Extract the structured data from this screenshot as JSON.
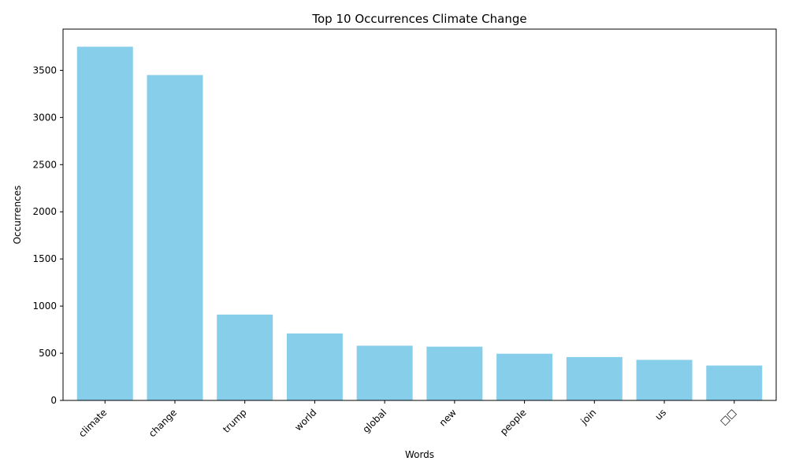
{
  "chart_data": {
    "type": "bar",
    "title": "Top 10 Occurrences Climate Change",
    "xlabel": "Words",
    "ylabel": "Occurrences",
    "categories": [
      "climate",
      "change",
      "trump",
      "world",
      "global",
      "new",
      "people",
      "join",
      "us",
      "□□"
    ],
    "values": [
      3750,
      3450,
      910,
      710,
      580,
      570,
      495,
      460,
      430,
      370
    ],
    "ylim": [
      0,
      3937
    ],
    "yticks": [
      0,
      500,
      1000,
      1500,
      2000,
      2500,
      3000,
      3500
    ],
    "ytick_labels": [
      "0",
      "500",
      "1000",
      "1500",
      "2000",
      "2500",
      "3000",
      "3500"
    ],
    "grid": false,
    "bar_color": "#87ceeb"
  }
}
